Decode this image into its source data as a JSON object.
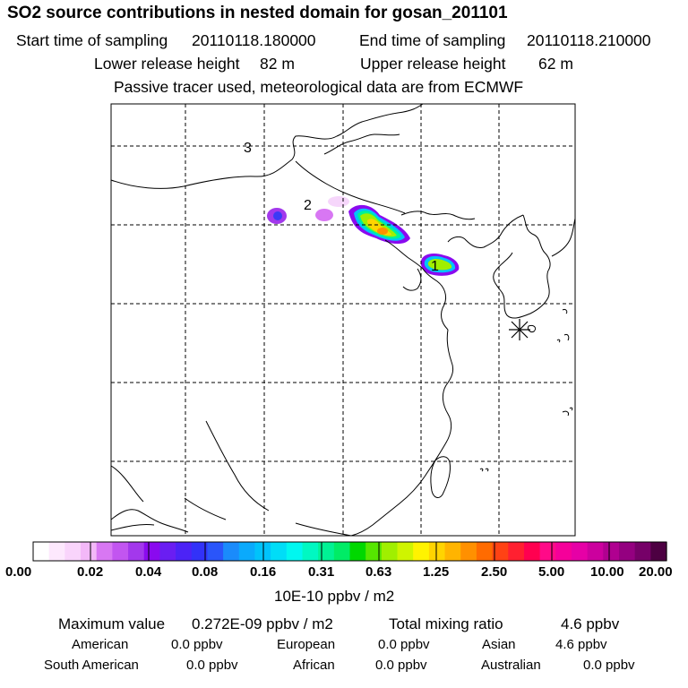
{
  "title": "SO2 source contributions in nested domain for gosan_201101",
  "header": {
    "start_label": "Start time of sampling",
    "start_value": "20110118.180000",
    "end_label": "End time of sampling",
    "end_value": "20110118.210000",
    "lower_label": "Lower release height",
    "lower_value": "82 m",
    "upper_label": "Upper release height",
    "upper_value": "62 m",
    "note": "Passive tracer used, meteorological data are from ECMWF"
  },
  "map": {
    "labels": [
      "3",
      "2",
      "1"
    ],
    "marker": "receptor-star"
  },
  "colorbar": {
    "ticks": [
      "0.00",
      "0.02",
      "0.04",
      "0.08",
      "0.16",
      "0.31",
      "0.63",
      "1.25",
      "2.50",
      "5.00",
      "10.00",
      "20.00"
    ],
    "units": "10E-10 ppbv / m2",
    "colors": [
      "#ffffff",
      "#fde8fd",
      "#f9d4fb",
      "#f3b8f8",
      "#d877f3",
      "#c255f0",
      "#a338ec",
      "#8a0aef",
      "#6a1ef2",
      "#4c23f6",
      "#3232f8",
      "#2a55fa",
      "#1a8bfb",
      "#0aaafc",
      "#00c3fb",
      "#00ddf7",
      "#00f7f0",
      "#00f8c2",
      "#00f294",
      "#00ec66",
      "#00d800",
      "#56e600",
      "#a0ef00",
      "#cff400",
      "#fff300",
      "#ffd400",
      "#ffb400",
      "#ff9000",
      "#ff6b00",
      "#ff4214",
      "#ff2030",
      "#ff0050",
      "#ff0a88",
      "#f5009a",
      "#e600a6",
      "#cc009e",
      "#b00090",
      "#940080",
      "#760068",
      "#4d0042"
    ]
  },
  "summary": {
    "max_label": "Maximum value",
    "max_value": "0.272E-09 ppbv / m2",
    "total_label": "Total mixing ratio",
    "total_value": "4.6 ppbv"
  },
  "regions": [
    {
      "name": "American",
      "value": "0.0 ppbv"
    },
    {
      "name": "European",
      "value": "0.0 ppbv"
    },
    {
      "name": "Asian",
      "value": "4.6 ppbv"
    },
    {
      "name": "South American",
      "value": "0.0 ppbv"
    },
    {
      "name": "African",
      "value": "0.0 ppbv"
    },
    {
      "name": "Australian",
      "value": "0.0 ppbv"
    }
  ]
}
